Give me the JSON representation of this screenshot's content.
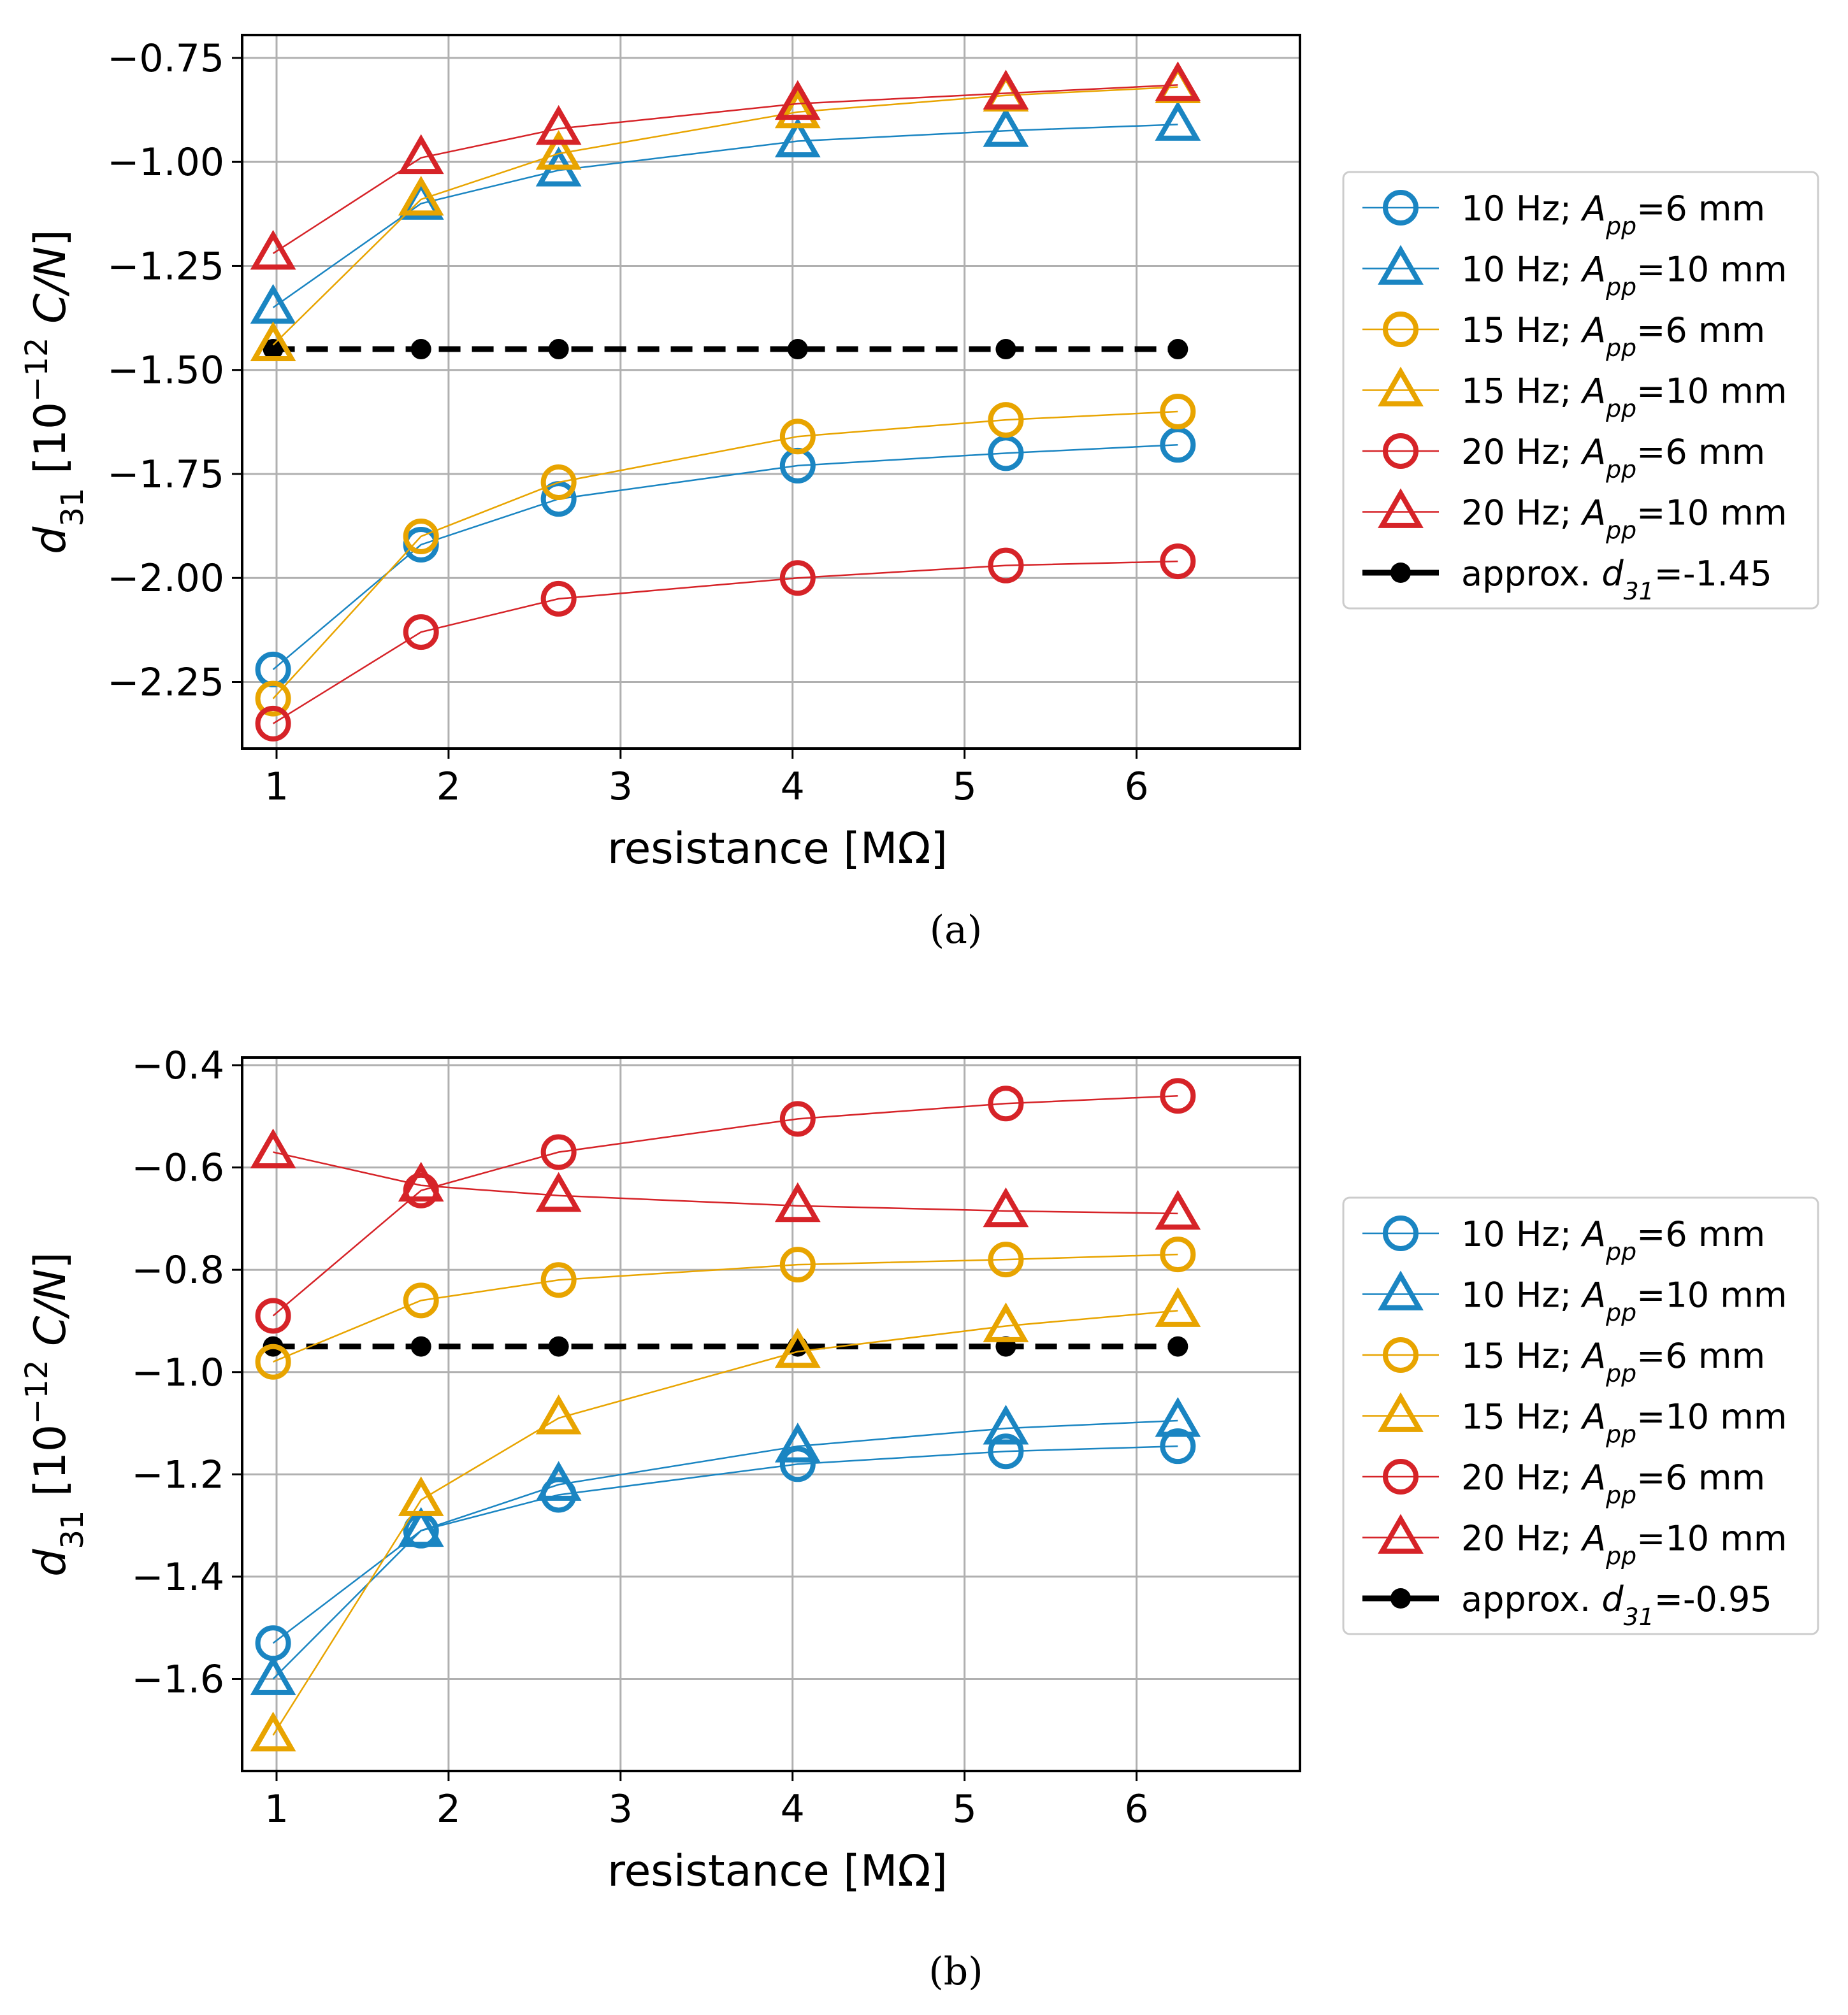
{
  "figure": {
    "panel_a_caption": "(a)",
    "panel_b_caption": "(b)"
  },
  "colors": {
    "blue": "#1a85c2",
    "orange": "#e8a400",
    "red": "#d62328",
    "black": "#000000",
    "grid": "#b0b0b0"
  },
  "chart_data": [
    {
      "type": "line",
      "panel": "(a)",
      "xlabel": "resistance [MΩ]",
      "ylabel": "d31 [10−12 C/N]",
      "ylabel_parts": {
        "main": "d",
        "sub": "31",
        "pre": " [10",
        "sup": "−12",
        "unit": " C/N]"
      },
      "xlim": [
        0.8,
        6.95
      ],
      "ylim": [
        -2.41,
        -0.695
      ],
      "xticks": [
        1,
        2,
        3,
        4,
        5,
        6
      ],
      "yticks": [
        -2.25,
        -2.0,
        -1.75,
        -1.5,
        -1.25,
        -1.0,
        -0.75
      ],
      "ytick_labels": [
        "−2.25",
        "−2.00",
        "−1.75",
        "−1.50",
        "−1.25",
        "−1.00",
        "−0.75"
      ],
      "grid": true,
      "legend_position": "outside-right",
      "x": [
        0.98,
        1.84,
        2.64,
        4.03,
        5.24,
        6.24
      ],
      "series": [
        {
          "name": "10 Hz; App=6 mm",
          "label": {
            "pre": "10 Hz; ",
            "main": "A",
            "sub": "pp",
            "post": "=6 mm"
          },
          "color": "blue",
          "marker": "circle",
          "values": [
            -2.22,
            -1.92,
            -1.81,
            -1.73,
            -1.7,
            -1.68
          ]
        },
        {
          "name": "10 Hz; App=10 mm",
          "label": {
            "pre": "10 Hz; ",
            "main": "A",
            "sub": "pp",
            "post": "=10 mm"
          },
          "color": "blue",
          "marker": "triangle",
          "values": [
            -1.35,
            -1.1,
            -1.02,
            -0.95,
            -0.925,
            -0.91
          ]
        },
        {
          "name": "15 Hz; App=6 mm",
          "label": {
            "pre": "15 Hz; ",
            "main": "A",
            "sub": "pp",
            "post": "=6 mm"
          },
          "color": "orange",
          "marker": "circle",
          "values": [
            -2.29,
            -1.9,
            -1.77,
            -1.66,
            -1.62,
            -1.6
          ]
        },
        {
          "name": "15 Hz; App=10 mm",
          "label": {
            "pre": "15 Hz; ",
            "main": "A",
            "sub": "pp",
            "post": "=10 mm"
          },
          "color": "orange",
          "marker": "triangle",
          "values": [
            -1.44,
            -1.09,
            -0.98,
            -0.88,
            -0.84,
            -0.82
          ]
        },
        {
          "name": "20 Hz; App=6 mm",
          "label": {
            "pre": "20 Hz; ",
            "main": "A",
            "sub": "pp",
            "post": "=6 mm"
          },
          "color": "red",
          "marker": "circle",
          "values": [
            -2.35,
            -2.13,
            -2.05,
            -2.0,
            -1.97,
            -1.96
          ]
        },
        {
          "name": "20 Hz; App=10 mm",
          "label": {
            "pre": "20 Hz; ",
            "main": "A",
            "sub": "pp",
            "post": "=10 mm"
          },
          "color": "red",
          "marker": "triangle",
          "values": [
            -1.22,
            -0.99,
            -0.92,
            -0.86,
            -0.835,
            -0.815
          ]
        }
      ],
      "reference": {
        "name": "approx. d31=-1.45",
        "label": {
          "pre": "approx. ",
          "main": "d",
          "sub": "31",
          "post": "=-1.45"
        },
        "color": "black",
        "style": "dashed",
        "value": -1.45
      }
    },
    {
      "type": "line",
      "panel": "(b)",
      "xlabel": "resistance [MΩ]",
      "ylabel": "d31 [10−12 C/N]",
      "ylabel_parts": {
        "main": "d",
        "sub": "31",
        "pre": " [10",
        "sup": "−12",
        "unit": " C/N]"
      },
      "xlim": [
        0.8,
        6.95
      ],
      "ylim": [
        -1.78,
        -0.385
      ],
      "xticks": [
        1,
        2,
        3,
        4,
        5,
        6
      ],
      "yticks": [
        -1.6,
        -1.4,
        -1.2,
        -1.0,
        -0.8,
        -0.6,
        -0.4
      ],
      "ytick_labels": [
        "−1.6",
        "−1.4",
        "−1.2",
        "−1.0",
        "−0.8",
        "−0.6",
        "−0.4"
      ],
      "grid": true,
      "legend_position": "outside-right",
      "x": [
        0.98,
        1.84,
        2.64,
        4.03,
        5.24,
        6.24
      ],
      "series": [
        {
          "name": "10 Hz; App=6 mm",
          "label": {
            "pre": "10 Hz; ",
            "main": "A",
            "sub": "pp",
            "post": "=6 mm"
          },
          "color": "blue",
          "marker": "circle",
          "values": [
            -1.53,
            -1.31,
            -1.24,
            -1.18,
            -1.155,
            -1.145
          ]
        },
        {
          "name": "10 Hz; App=10 mm",
          "label": {
            "pre": "10 Hz; ",
            "main": "A",
            "sub": "pp",
            "post": "=10 mm"
          },
          "color": "blue",
          "marker": "triangle",
          "values": [
            -1.6,
            -1.31,
            -1.22,
            -1.145,
            -1.11,
            -1.095
          ]
        },
        {
          "name": "15 Hz; App=6 mm",
          "label": {
            "pre": "15 Hz; ",
            "main": "A",
            "sub": "pp",
            "post": "=6 mm"
          },
          "color": "orange",
          "marker": "circle",
          "values": [
            -0.98,
            -0.86,
            -0.82,
            -0.79,
            -0.78,
            -0.77
          ]
        },
        {
          "name": "15 Hz; App=10 mm",
          "label": {
            "pre": "15 Hz; ",
            "main": "A",
            "sub": "pp",
            "post": "=10 mm"
          },
          "color": "orange",
          "marker": "triangle",
          "values": [
            -1.71,
            -1.25,
            -1.09,
            -0.96,
            -0.91,
            -0.88
          ]
        },
        {
          "name": "20 Hz; App=6 mm",
          "label": {
            "pre": "20 Hz; ",
            "main": "A",
            "sub": "pp",
            "post": "=6 mm"
          },
          "color": "red",
          "marker": "circle",
          "values": [
            -0.89,
            -0.645,
            -0.57,
            -0.505,
            -0.475,
            -0.46
          ]
        },
        {
          "name": "20 Hz; App=10 mm",
          "label": {
            "pre": "20 Hz; ",
            "main": "A",
            "sub": "pp",
            "post": "=10 mm"
          },
          "color": "red",
          "marker": "triangle",
          "values": [
            -0.57,
            -0.635,
            -0.655,
            -0.675,
            -0.685,
            -0.69
          ]
        }
      ],
      "reference": {
        "name": "approx. d31=-0.95",
        "label": {
          "pre": "approx. ",
          "main": "d",
          "sub": "31",
          "post": "=-0.95"
        },
        "color": "black",
        "style": "dashed",
        "value": -0.95
      }
    }
  ]
}
